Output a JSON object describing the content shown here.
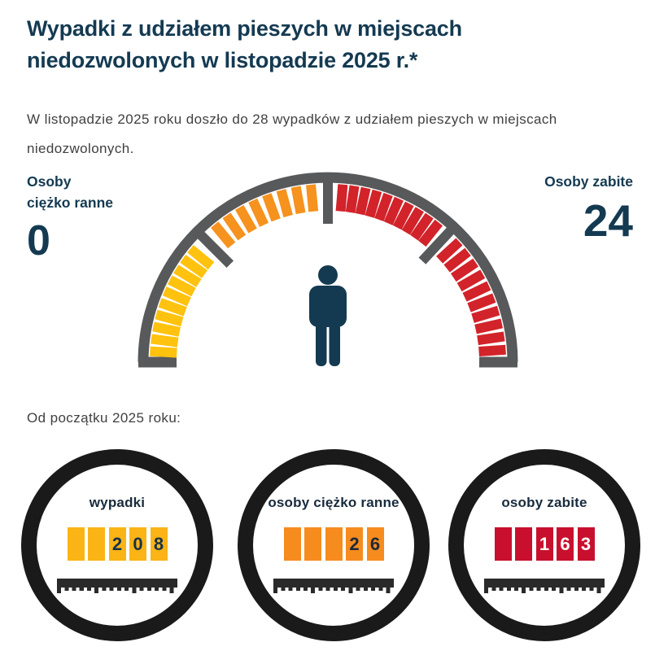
{
  "title": {
    "line1": "Wypadki z udziałem pieszych w miejscach",
    "line2": "niedozwolonych w listopadzie 2025 r.*"
  },
  "intro": {
    "text": "W listopadzie 2025 roku doszło do 28 wypadków z udziałem pieszych w miejscach niedozwolonych."
  },
  "gauge": {
    "left_stat": {
      "label_line1": "Osoby",
      "label_line2": "ciężko ranne",
      "value": "0"
    },
    "right_stat": {
      "label": "Osoby zabite",
      "value": "24"
    },
    "arc_color": "#58595B",
    "person_color": "#143A52",
    "tick_width": 12,
    "segments": [
      {
        "name": "yellow",
        "color": "#FFC20E",
        "count": 10,
        "from": 176.5,
        "to": 140.5
      },
      {
        "name": "orange",
        "color": "#F6921E",
        "count": 8,
        "from": 129.5,
        "to": 95.5
      },
      {
        "name": "red-upper",
        "color": "#D2232A",
        "count": 10,
        "from": 85.2,
        "to": 51.5
      },
      {
        "name": "red-lower",
        "color": "#D2232A",
        "count": 10,
        "from": 42.5,
        "to": 4.0
      }
    ],
    "notches": [
      135,
      90,
      47
    ]
  },
  "ytd": {
    "heading": "Od początku 2025 roku:",
    "circles": [
      {
        "label": "wypadki",
        "value": 208,
        "box_color": "#FBB416",
        "digit_color": "#15324A",
        "digits": [
          "",
          "",
          "2",
          "0",
          "8"
        ]
      },
      {
        "label": "osoby ciężko ranne",
        "value": 26,
        "box_color": "#F68B1E",
        "digit_color": "#1C2A36",
        "digits": [
          "",
          "",
          "",
          "2",
          "6"
        ]
      },
      {
        "label": "osoby zabite",
        "value": 163,
        "box_color": "#C8102E",
        "digit_color": "#FFFFFF",
        "digits": [
          "",
          "",
          "1",
          "6",
          "3"
        ]
      }
    ]
  },
  "chart_data": [
    {
      "type": "gauge",
      "title": "Wypadki z udziałem pieszych w miejscach niedozwolonych w listopadzie 2025 r.*",
      "period": "listopad 2025",
      "metrics": [
        {
          "label": "wypadki",
          "value": 28
        },
        {
          "label": "osoby ciężko ranne",
          "value": 0
        },
        {
          "label": "osoby zabite",
          "value": 24
        }
      ],
      "tick_segments": [
        {
          "color": "#FFC20E",
          "ticks": 10
        },
        {
          "color": "#F6921E",
          "ticks": 8
        },
        {
          "color": "#D2232A",
          "ticks": 20
        }
      ],
      "legend_position": "sides",
      "grid": false
    },
    {
      "type": "bar",
      "title": "Od początku 2025 roku:",
      "categories": [
        "wypadki",
        "osoby ciężko ranne",
        "osoby zabite"
      ],
      "values": [
        208,
        26,
        163
      ],
      "colors": [
        "#FBB416",
        "#F68B1E",
        "#C8102E"
      ]
    }
  ]
}
